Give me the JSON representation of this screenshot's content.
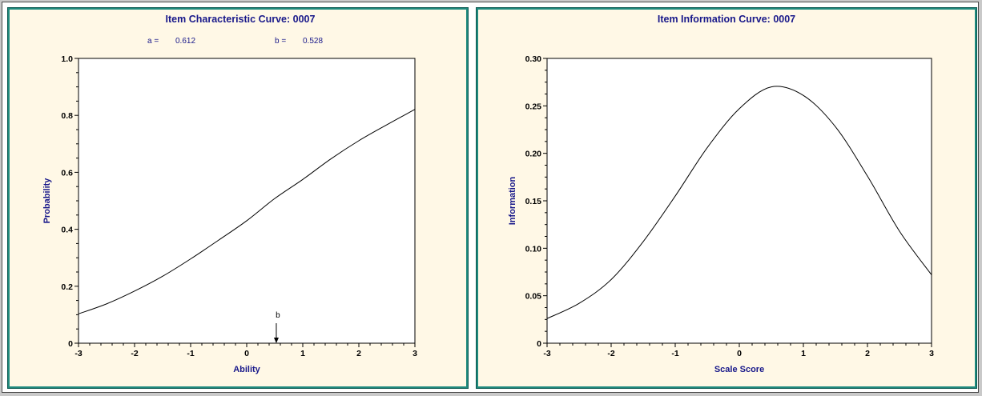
{
  "chart_data": [
    {
      "type": "line",
      "title": "Item Characteristic Curve: 0007",
      "param_a_label": "a =",
      "param_a_value": "0.612",
      "param_b_label": "b =",
      "param_b_value": "0.528",
      "xlabel": "Ability",
      "ylabel": "Probability",
      "xlim": [
        -3,
        3
      ],
      "ylim": [
        0,
        1.0
      ],
      "x_ticks": [
        "-3",
        "-2",
        "-1",
        "0",
        "1",
        "2",
        "3"
      ],
      "y_ticks": [
        "0",
        "0.2",
        "0.4",
        "0.6",
        "0.8",
        "1.0"
      ],
      "marker_label": "b",
      "marker_x": 0.528,
      "series": [
        {
          "x": [
            -3,
            -2.5,
            -2,
            -1.5,
            -1,
            -0.5,
            0,
            0.5,
            1,
            1.5,
            2,
            2.5,
            3
          ],
          "y": [
            0.103,
            0.138,
            0.183,
            0.235,
            0.296,
            0.362,
            0.43,
            0.508,
            0.575,
            0.647,
            0.711,
            0.767,
            0.821
          ]
        }
      ]
    },
    {
      "type": "line",
      "title": "Item Information Curve: 0007",
      "xlabel": "Scale Score",
      "ylabel": "Information",
      "xlim": [
        -3,
        3
      ],
      "ylim": [
        0,
        0.3
      ],
      "x_ticks": [
        "-3",
        "-2",
        "-1",
        "0",
        "1",
        "2",
        "3"
      ],
      "y_ticks": [
        "0",
        "0.05",
        "0.10",
        "0.15",
        "0.20",
        "0.25",
        "0.30"
      ],
      "series": [
        {
          "x": [
            -3,
            -2.5,
            -2,
            -1.5,
            -1,
            -0.5,
            0,
            0.5,
            1,
            1.5,
            2,
            2.5,
            3
          ],
          "y": [
            0.026,
            0.042,
            0.067,
            0.107,
            0.155,
            0.206,
            0.247,
            0.27,
            0.261,
            0.228,
            0.176,
            0.118,
            0.072
          ]
        }
      ]
    }
  ]
}
